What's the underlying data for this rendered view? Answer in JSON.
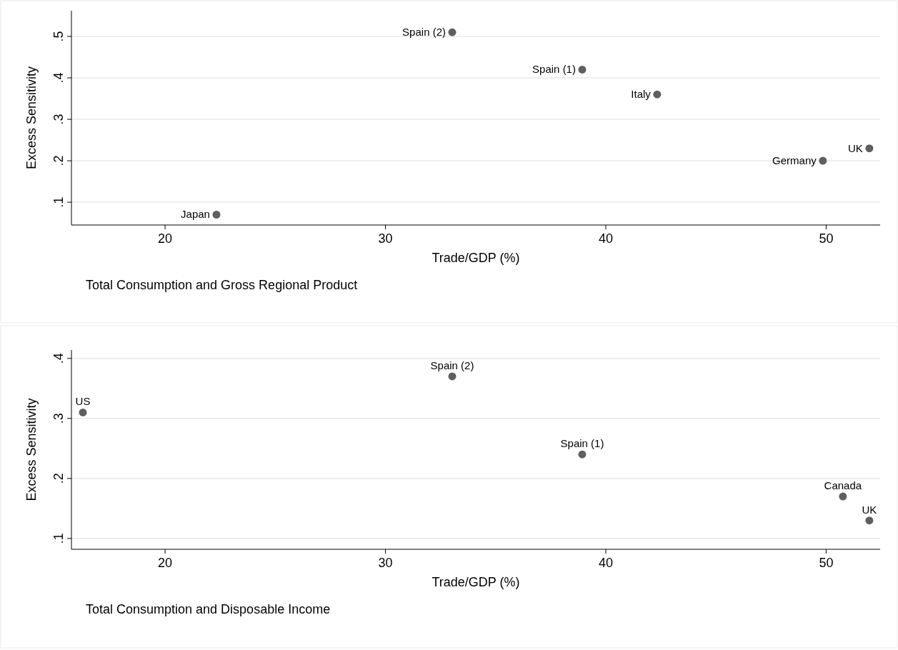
{
  "chart_data": [
    {
      "type": "scatter",
      "title": "Total Consumption and Gross Regional Product",
      "xlabel": "Trade/GDP (%)",
      "ylabel": "Excess Sensitivity",
      "x": [
        33.03,
        38.93,
        42.33,
        49.85,
        51.96,
        22.33
      ],
      "values": [
        0.51,
        0.42,
        0.36,
        0.2,
        0.23,
        0.07
      ],
      "color": "#5f5f5f",
      "marker": "circle",
      "grid": "y",
      "xlim": [
        15.75,
        52.45
      ],
      "ylim": [
        0.045,
        0.562
      ],
      "xticks": [
        20,
        30,
        40,
        50
      ],
      "yticks": [
        {
          "value": 0.1,
          "label": ".1"
        },
        {
          "value": 0.2,
          "label": ".2"
        },
        {
          "value": 0.3,
          "label": ".3"
        },
        {
          "value": 0.4,
          "label": ".4"
        },
        {
          "value": 0.5,
          "label": ".5"
        }
      ],
      "annotations": [
        {
          "text": "Spain (2)",
          "x": 33.03,
          "y": 0.51
        },
        {
          "text": "Spain (1)",
          "x": 38.93,
          "y": 0.42
        },
        {
          "text": "Italy",
          "x": 42.33,
          "y": 0.36
        },
        {
          "text": "Germany",
          "x": 49.85,
          "y": 0.2
        },
        {
          "text": "UK",
          "x": 51.96,
          "y": 0.23
        },
        {
          "text": "Japan",
          "x": 22.33,
          "y": 0.07
        }
      ]
    },
    {
      "type": "scatter",
      "title": "Total Consumption and Disposable Income",
      "xlabel": "Trade/GDP (%)",
      "ylabel": "Excess Sensitivity",
      "x": [
        16.27,
        33.03,
        38.93,
        50.76,
        51.96
      ],
      "values": [
        0.31,
        0.37,
        0.24,
        0.17,
        0.13
      ],
      "color": "#5f5f5f",
      "marker": "circle",
      "grid": "y",
      "xlim": [
        15.75,
        52.45
      ],
      "ylim": [
        0.082,
        0.414
      ],
      "xticks": [
        20,
        30,
        40,
        50
      ],
      "yticks": [
        {
          "value": 0.1,
          "label": ".1"
        },
        {
          "value": 0.2,
          "label": ".2"
        },
        {
          "value": 0.3,
          "label": ".3"
        },
        {
          "value": 0.4,
          "label": ".4"
        }
      ],
      "annotations": [
        {
          "text": "US",
          "x": 16.27,
          "y": 0.31
        },
        {
          "text": "Spain (2)",
          "x": 33.03,
          "y": 0.37
        },
        {
          "text": "Spain (1)",
          "x": 38.93,
          "y": 0.24
        },
        {
          "text": "Canada",
          "x": 50.76,
          "y": 0.17
        },
        {
          "text": "UK",
          "x": 51.96,
          "y": 0.13
        }
      ]
    }
  ]
}
